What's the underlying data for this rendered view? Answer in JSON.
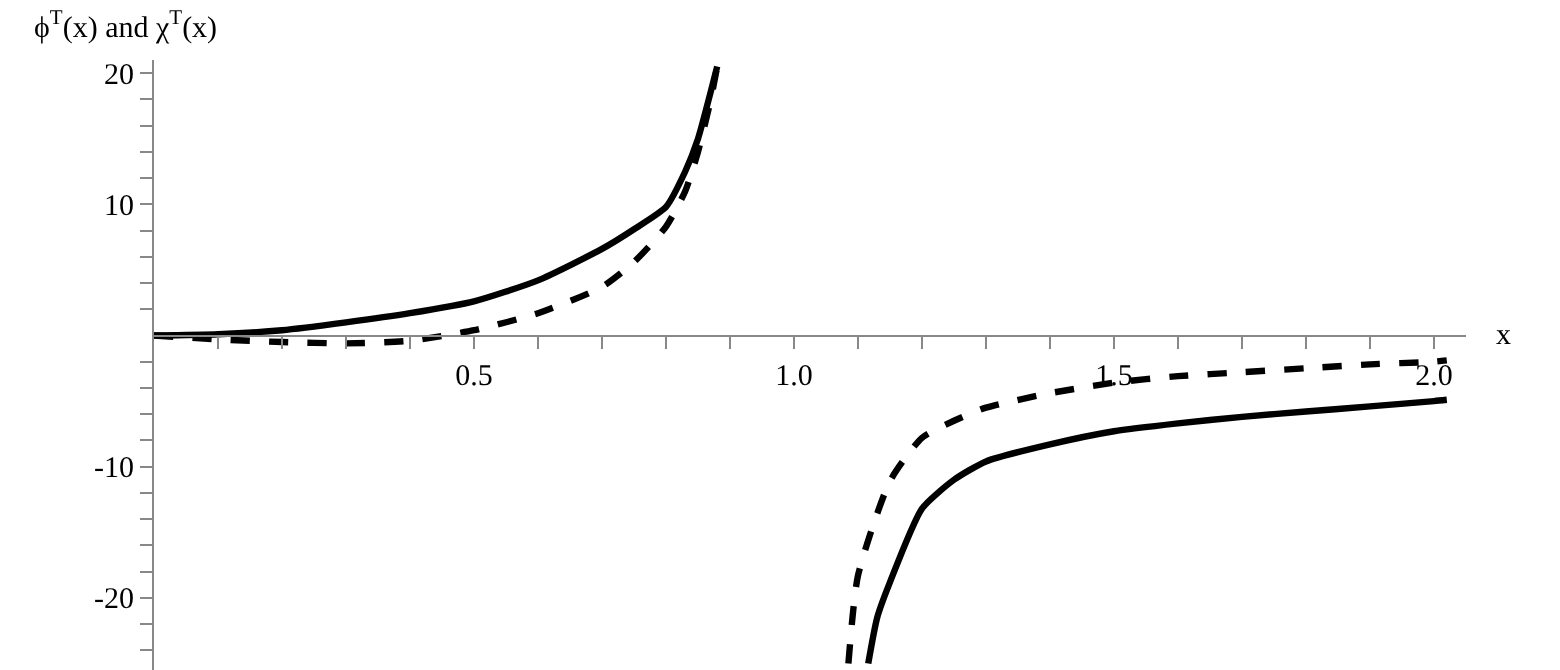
{
  "chart_data": {
    "type": "line",
    "ylabel": "ϕ$^{T}$(x) and χ$^{T}$(x)",
    "xlabel": "x",
    "xlim": [
      0,
      2.05
    ],
    "ylim": [
      -25.5,
      21
    ],
    "xticks": [
      {
        "value": 0.1,
        "label": null
      },
      {
        "value": 0.2,
        "label": null
      },
      {
        "value": 0.3,
        "label": null
      },
      {
        "value": 0.4,
        "label": null
      },
      {
        "value": 0.5,
        "label": "0.5"
      },
      {
        "value": 0.6,
        "label": null
      },
      {
        "value": 0.7,
        "label": null
      },
      {
        "value": 0.8,
        "label": null
      },
      {
        "value": 0.9,
        "label": null
      },
      {
        "value": 1,
        "label": "1.0"
      },
      {
        "value": 1.1,
        "label": null
      },
      {
        "value": 1.2,
        "label": null
      },
      {
        "value": 1.3,
        "label": null
      },
      {
        "value": 1.4,
        "label": null
      },
      {
        "value": 1.5,
        "label": "1.5"
      },
      {
        "value": 1.6,
        "label": null
      },
      {
        "value": 1.7,
        "label": null
      },
      {
        "value": 1.8,
        "label": null
      },
      {
        "value": 1.9,
        "label": null
      },
      {
        "value": 2,
        "label": "2.0"
      }
    ],
    "yticks": [
      {
        "value": -24,
        "label": null
      },
      {
        "value": -22,
        "label": null
      },
      -20,
      {
        "value": -18,
        "label": null
      },
      {
        "value": -16,
        "label": null
      },
      {
        "value": -14,
        "label": null
      },
      {
        "value": -12,
        "label": null
      },
      -10,
      {
        "value": -8,
        "label": null
      },
      {
        "value": -6,
        "label": null
      },
      {
        "value": -4,
        "label": null
      },
      {
        "value": -2,
        "label": null
      },
      {
        "value": 2,
        "label": null
      },
      {
        "value": 4,
        "label": null
      },
      {
        "value": 6,
        "label": null
      },
      {
        "value": 8,
        "label": null
      },
      10,
      {
        "value": 12,
        "label": null
      },
      {
        "value": 14,
        "label": null
      },
      {
        "value": 16,
        "label": null
      },
      {
        "value": 18,
        "label": null
      },
      20
    ],
    "grid": false,
    "marker": "none",
    "series": [
      {
        "color": "#000000",
        "line_style": "solid",
        "x": [
          0,
          0.1,
          0.2,
          0.3,
          0.4,
          0.5,
          0.6,
          0.7,
          0.75,
          0.8,
          0.83,
          0.85,
          0.87,
          0.88,
          1.0,
          1.116,
          1.13,
          1.15,
          1.2,
          1.25,
          1.3,
          1.4,
          1.5,
          1.6,
          1.7,
          1.8,
          1.9,
          2.0,
          2.02
        ],
        "values": [
          0,
          0.1,
          0.4,
          1.0,
          1.7,
          2.6,
          4.2,
          6.6,
          8.1,
          9.8,
          12.5,
          15,
          18.6,
          20.5,
          null,
          -25,
          -21.5,
          -18.8,
          -13.2,
          -11,
          -9.6,
          -8.3,
          -7.3,
          -6.7,
          -6.2,
          -5.8,
          -5.4,
          -5.0,
          -4.9
        ]
      },
      {
        "color": "#000000",
        "line_style": "dashed",
        "x": [
          0,
          0.1,
          0.2,
          0.3,
          0.4,
          0.5,
          0.6,
          0.7,
          0.75,
          0.8,
          0.83,
          0.85,
          0.87,
          0.88,
          1.0,
          1.085,
          1.1,
          1.15,
          1.2,
          1.25,
          1.3,
          1.4,
          1.5,
          1.6,
          1.7,
          1.8,
          1.9,
          2.0,
          2.02
        ],
        "values": [
          0,
          -0.3,
          -0.5,
          -0.6,
          -0.4,
          0.4,
          1.7,
          3.7,
          5.6,
          8.3,
          11,
          14,
          18,
          20.5,
          null,
          -25,
          -18.3,
          -11.1,
          -7.8,
          -6.5,
          -5.5,
          -4.4,
          -3.6,
          -3.1,
          -2.8,
          -2.5,
          -2.2,
          -2.0,
          -1.9
        ]
      }
    ]
  }
}
